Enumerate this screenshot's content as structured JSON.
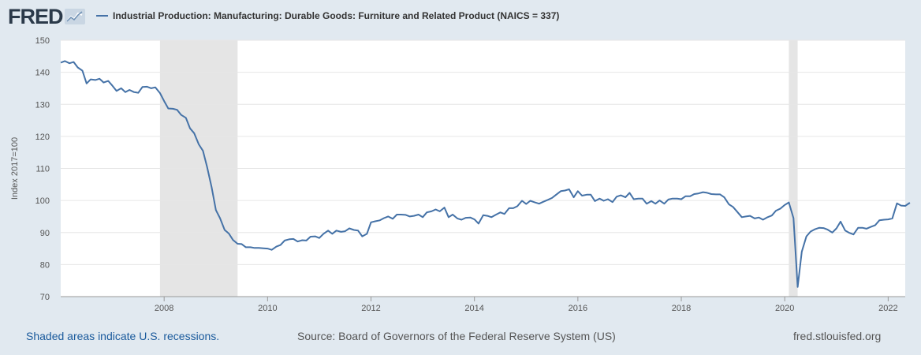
{
  "header": {
    "logo_text": "FRED",
    "legend_label": "Industrial Production: Manufacturing: Durable Goods: Furniture and Related Product (NAICS = 337)"
  },
  "footer": {
    "recession_note": "Shaded areas indicate U.S. recessions.",
    "source": "Source: Board of Governors of the Federal Reserve System (US)",
    "site": "fred.stlouisfed.org"
  },
  "colors": {
    "series": "#4572a7",
    "recession_shading": "#e5e5e5",
    "background": "#e1e9f0",
    "plot_background": "#ffffff"
  },
  "chart_data": {
    "type": "line",
    "title": "",
    "ylabel": "Index 2017=100",
    "xlabel": "",
    "ylim": [
      70,
      150
    ],
    "xlim": [
      2006.0,
      2022.33
    ],
    "yticks": [
      70,
      80,
      90,
      100,
      110,
      120,
      130,
      140,
      150
    ],
    "xticks": [
      "2008",
      "2010",
      "2012",
      "2014",
      "2016",
      "2018",
      "2020",
      "2022"
    ],
    "grid": true,
    "legend": "top",
    "recessions": [
      [
        2007.92,
        2009.42
      ],
      [
        2020.08,
        2020.25
      ]
    ],
    "series": [
      {
        "name": "Industrial Production: Manufacturing: Durable Goods: Furniture and Related Product (NAICS = 337)",
        "points": [
          [
            2006.0,
            143.0
          ],
          [
            2006.08,
            143.5
          ],
          [
            2006.17,
            142.8
          ],
          [
            2006.25,
            143.2
          ],
          [
            2006.33,
            141.5
          ],
          [
            2006.42,
            140.5
          ],
          [
            2006.5,
            136.5
          ],
          [
            2006.58,
            137.8
          ],
          [
            2006.67,
            137.6
          ],
          [
            2006.75,
            138.0
          ],
          [
            2006.83,
            136.8
          ],
          [
            2006.92,
            137.3
          ],
          [
            2007.0,
            135.8
          ],
          [
            2007.08,
            134.2
          ],
          [
            2007.17,
            135.0
          ],
          [
            2007.25,
            133.8
          ],
          [
            2007.33,
            134.5
          ],
          [
            2007.42,
            133.8
          ],
          [
            2007.5,
            133.6
          ],
          [
            2007.58,
            135.4
          ],
          [
            2007.67,
            135.5
          ],
          [
            2007.75,
            135.0
          ],
          [
            2007.83,
            135.3
          ],
          [
            2007.92,
            133.5
          ],
          [
            2008.0,
            131.0
          ],
          [
            2008.08,
            128.7
          ],
          [
            2008.17,
            128.6
          ],
          [
            2008.25,
            128.3
          ],
          [
            2008.33,
            126.7
          ],
          [
            2008.42,
            125.8
          ],
          [
            2008.5,
            122.5
          ],
          [
            2008.58,
            121.0
          ],
          [
            2008.67,
            117.5
          ],
          [
            2008.75,
            115.5
          ],
          [
            2008.83,
            110.5
          ],
          [
            2008.92,
            104.0
          ],
          [
            2009.0,
            97.0
          ],
          [
            2009.08,
            94.5
          ],
          [
            2009.17,
            90.8
          ],
          [
            2009.25,
            89.7
          ],
          [
            2009.33,
            87.7
          ],
          [
            2009.42,
            86.5
          ],
          [
            2009.5,
            86.4
          ],
          [
            2009.58,
            85.4
          ],
          [
            2009.67,
            85.4
          ],
          [
            2009.75,
            85.2
          ],
          [
            2009.83,
            85.2
          ],
          [
            2009.92,
            85.1
          ],
          [
            2010.0,
            85.0
          ],
          [
            2010.08,
            84.6
          ],
          [
            2010.17,
            85.6
          ],
          [
            2010.25,
            86.1
          ],
          [
            2010.33,
            87.5
          ],
          [
            2010.42,
            87.9
          ],
          [
            2010.5,
            88.0
          ],
          [
            2010.58,
            87.2
          ],
          [
            2010.67,
            87.6
          ],
          [
            2010.75,
            87.5
          ],
          [
            2010.83,
            88.7
          ],
          [
            2010.92,
            88.8
          ],
          [
            2011.0,
            88.3
          ],
          [
            2011.08,
            89.6
          ],
          [
            2011.17,
            90.6
          ],
          [
            2011.25,
            89.6
          ],
          [
            2011.33,
            90.6
          ],
          [
            2011.42,
            90.2
          ],
          [
            2011.5,
            90.4
          ],
          [
            2011.58,
            91.3
          ],
          [
            2011.67,
            90.8
          ],
          [
            2011.75,
            90.6
          ],
          [
            2011.83,
            88.8
          ],
          [
            2011.92,
            89.6
          ],
          [
            2012.0,
            93.2
          ],
          [
            2012.08,
            93.5
          ],
          [
            2012.17,
            93.8
          ],
          [
            2012.25,
            94.5
          ],
          [
            2012.33,
            95.0
          ],
          [
            2012.42,
            94.3
          ],
          [
            2012.5,
            95.6
          ],
          [
            2012.58,
            95.6
          ],
          [
            2012.67,
            95.5
          ],
          [
            2012.75,
            95.0
          ],
          [
            2012.83,
            95.2
          ],
          [
            2012.92,
            95.6
          ],
          [
            2013.0,
            94.8
          ],
          [
            2013.08,
            96.3
          ],
          [
            2013.17,
            96.6
          ],
          [
            2013.25,
            97.2
          ],
          [
            2013.33,
            96.6
          ],
          [
            2013.42,
            97.8
          ],
          [
            2013.5,
            94.8
          ],
          [
            2013.58,
            95.6
          ],
          [
            2013.67,
            94.4
          ],
          [
            2013.75,
            94.0
          ],
          [
            2013.83,
            94.6
          ],
          [
            2013.92,
            94.7
          ],
          [
            2014.0,
            94.1
          ],
          [
            2014.08,
            92.8
          ],
          [
            2014.17,
            95.4
          ],
          [
            2014.25,
            95.2
          ],
          [
            2014.33,
            94.8
          ],
          [
            2014.42,
            95.6
          ],
          [
            2014.5,
            96.3
          ],
          [
            2014.58,
            95.8
          ],
          [
            2014.67,
            97.6
          ],
          [
            2014.75,
            97.6
          ],
          [
            2014.83,
            98.2
          ],
          [
            2014.92,
            99.9
          ],
          [
            2015.0,
            98.9
          ],
          [
            2015.08,
            99.9
          ],
          [
            2015.17,
            99.4
          ],
          [
            2015.25,
            99.0
          ],
          [
            2015.33,
            99.6
          ],
          [
            2015.42,
            100.2
          ],
          [
            2015.5,
            100.8
          ],
          [
            2015.58,
            101.8
          ],
          [
            2015.67,
            102.9
          ],
          [
            2015.75,
            103.1
          ],
          [
            2015.83,
            103.5
          ],
          [
            2015.92,
            101.0
          ],
          [
            2016.0,
            102.9
          ],
          [
            2016.08,
            101.5
          ],
          [
            2016.17,
            101.8
          ],
          [
            2016.25,
            101.8
          ],
          [
            2016.33,
            99.8
          ],
          [
            2016.42,
            100.6
          ],
          [
            2016.5,
            99.9
          ],
          [
            2016.58,
            100.4
          ],
          [
            2016.67,
            99.5
          ],
          [
            2016.75,
            101.2
          ],
          [
            2016.83,
            101.6
          ],
          [
            2016.92,
            101.0
          ],
          [
            2017.0,
            102.4
          ],
          [
            2017.08,
            100.4
          ],
          [
            2017.17,
            100.6
          ],
          [
            2017.25,
            100.6
          ],
          [
            2017.33,
            99.0
          ],
          [
            2017.42,
            99.8
          ],
          [
            2017.5,
            99.0
          ],
          [
            2017.58,
            100.0
          ],
          [
            2017.67,
            99.0
          ],
          [
            2017.75,
            100.3
          ],
          [
            2017.83,
            100.6
          ],
          [
            2017.92,
            100.6
          ],
          [
            2018.0,
            100.4
          ],
          [
            2018.08,
            101.3
          ],
          [
            2018.17,
            101.3
          ],
          [
            2018.25,
            102.0
          ],
          [
            2018.33,
            102.2
          ],
          [
            2018.42,
            102.6
          ],
          [
            2018.5,
            102.4
          ],
          [
            2018.58,
            102.0
          ],
          [
            2018.67,
            101.9
          ],
          [
            2018.75,
            101.9
          ],
          [
            2018.83,
            101.0
          ],
          [
            2018.92,
            98.8
          ],
          [
            2019.0,
            98.0
          ],
          [
            2019.08,
            96.5
          ],
          [
            2019.17,
            94.8
          ],
          [
            2019.25,
            95.0
          ],
          [
            2019.33,
            95.2
          ],
          [
            2019.42,
            94.4
          ],
          [
            2019.5,
            94.7
          ],
          [
            2019.58,
            94.0
          ],
          [
            2019.67,
            94.8
          ],
          [
            2019.75,
            95.3
          ],
          [
            2019.83,
            96.8
          ],
          [
            2019.92,
            97.5
          ],
          [
            2020.0,
            98.6
          ],
          [
            2020.08,
            99.4
          ],
          [
            2020.17,
            94.5
          ],
          [
            2020.25,
            73.0
          ],
          [
            2020.33,
            84.0
          ],
          [
            2020.42,
            88.8
          ],
          [
            2020.5,
            90.3
          ],
          [
            2020.58,
            91.0
          ],
          [
            2020.67,
            91.5
          ],
          [
            2020.75,
            91.4
          ],
          [
            2020.83,
            90.9
          ],
          [
            2020.92,
            90.0
          ],
          [
            2021.0,
            91.3
          ],
          [
            2021.08,
            93.4
          ],
          [
            2021.17,
            90.6
          ],
          [
            2021.25,
            89.9
          ],
          [
            2021.33,
            89.4
          ],
          [
            2021.42,
            91.5
          ],
          [
            2021.5,
            91.5
          ],
          [
            2021.58,
            91.2
          ],
          [
            2021.67,
            91.8
          ],
          [
            2021.75,
            92.3
          ],
          [
            2021.83,
            93.8
          ],
          [
            2021.92,
            94.0
          ],
          [
            2022.0,
            94.1
          ],
          [
            2022.08,
            94.4
          ],
          [
            2022.17,
            99.1
          ],
          [
            2022.25,
            98.4
          ],
          [
            2022.33,
            98.3
          ],
          [
            2022.42,
            99.3
          ]
        ]
      }
    ]
  }
}
